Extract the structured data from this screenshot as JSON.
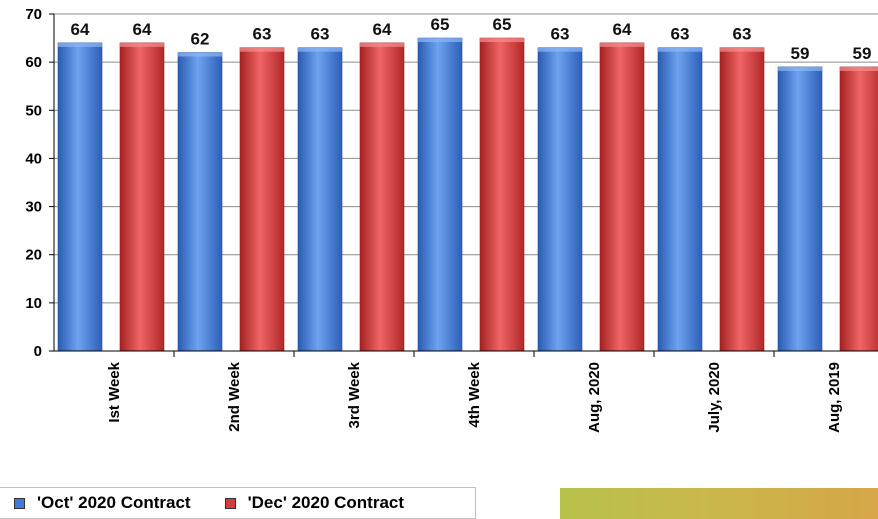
{
  "chart_data": {
    "type": "bar",
    "categories": [
      "Ist Week",
      "2nd Week",
      "3rd Week",
      "4th Week",
      "Aug, 2020",
      "July, 2020",
      "Aug, 2019"
    ],
    "series": [
      {
        "name": "'Oct' 2020 Contract",
        "values": [
          64,
          62,
          63,
          65,
          63,
          63,
          59
        ],
        "labels": [
          "64",
          "62",
          "63",
          "65",
          "63",
          "63",
          "59"
        ],
        "color": "#3f7ad8"
      },
      {
        "name": "'Dec' 2020 Contract",
        "values": [
          64,
          63,
          64,
          65,
          64,
          63,
          59
        ],
        "labels": [
          "64",
          "63",
          "64",
          "65",
          "64",
          "63",
          "59"
        ],
        "color": "#d63a3a"
      }
    ],
    "ylim": [
      0,
      70
    ],
    "yticks": [
      "0",
      "10",
      "20",
      "30",
      "40",
      "50",
      "60",
      "70"
    ],
    "grid": true,
    "legend_position": "bottom-left"
  },
  "colors": {
    "accent_band": "#c9b84a"
  }
}
